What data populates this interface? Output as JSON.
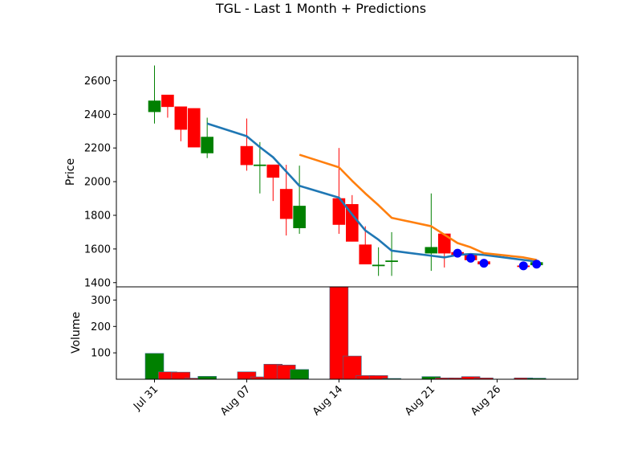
{
  "title": "TGL - Last 1 Month + Predictions",
  "colors": {
    "up": "#008000",
    "down": "#ff0000",
    "ma_short": "#1f77b4",
    "ma_long": "#ff7f0e",
    "prediction": "#0000ff"
  },
  "chart_data": [
    {
      "type": "candlestick",
      "ylabel": "Price",
      "ylim": [
        1375,
        2745
      ],
      "yticks": [
        1400,
        1600,
        1800,
        2000,
        2200,
        2400,
        2600
      ],
      "grid": false,
      "candles": [
        {
          "date": "2023-07-31",
          "open": 2415,
          "high": 2690,
          "low": 2345,
          "close": 2480
        },
        {
          "date": "2023-08-01",
          "open": 2515,
          "high": 2515,
          "low": 2380,
          "close": 2445
        },
        {
          "date": "2023-08-02",
          "open": 2445,
          "high": 2445,
          "low": 2240,
          "close": 2310
        },
        {
          "date": "2023-08-03",
          "open": 2435,
          "high": 2435,
          "low": 2205,
          "close": 2205
        },
        {
          "date": "2023-08-04",
          "open": 2170,
          "high": 2380,
          "low": 2140,
          "close": 2265
        },
        {
          "date": "2023-08-07",
          "open": 2210,
          "high": 2375,
          "low": 2065,
          "close": 2100
        },
        {
          "date": "2023-08-08",
          "open": 2100,
          "high": 2235,
          "low": 1930,
          "close": 2100
        },
        {
          "date": "2023-08-09",
          "open": 2100,
          "high": 2100,
          "low": 1885,
          "close": 2025
        },
        {
          "date": "2023-08-10",
          "open": 1955,
          "high": 2100,
          "low": 1680,
          "close": 1780
        },
        {
          "date": "2023-08-11",
          "open": 1725,
          "high": 2095,
          "low": 1690,
          "close": 1855
        },
        {
          "date": "2023-08-14",
          "open": 1900,
          "high": 2200,
          "low": 1690,
          "close": 1745
        },
        {
          "date": "2023-08-15",
          "open": 1865,
          "high": 1920,
          "low": 1645,
          "close": 1645
        },
        {
          "date": "2023-08-16",
          "open": 1625,
          "high": 1735,
          "low": 1510,
          "close": 1510
        },
        {
          "date": "2023-08-17",
          "open": 1505,
          "high": 1610,
          "low": 1440,
          "close": 1505
        },
        {
          "date": "2023-08-18",
          "open": 1525,
          "high": 1700,
          "low": 1440,
          "close": 1530
        },
        {
          "date": "2023-08-21",
          "open": 1575,
          "high": 1930,
          "low": 1470,
          "close": 1610
        },
        {
          "date": "2023-08-22",
          "open": 1690,
          "high": 1690,
          "low": 1490,
          "close": 1575
        },
        {
          "date": "2023-08-23",
          "open": 1580,
          "high": 1595,
          "low": 1555,
          "close": 1565
        },
        {
          "date": "2023-08-24",
          "open": 1565,
          "high": 1575,
          "low": 1535,
          "close": 1535
        },
        {
          "date": "2023-08-25",
          "open": 1525,
          "high": 1530,
          "low": 1505,
          "close": 1510
        },
        {
          "date": "2023-08-28",
          "open": 1500,
          "high": 1510,
          "low": 1490,
          "close": 1495
        },
        {
          "date": "2023-08-29",
          "open": 1505,
          "high": 1530,
          "low": 1500,
          "close": 1520
        }
      ],
      "series": [
        {
          "type": "line",
          "color": "#1f77b4",
          "points": [
            {
              "x": "2023-08-04",
              "y": 2345
            },
            {
              "x": "2023-08-07",
              "y": 2270
            },
            {
              "x": "2023-08-08",
              "y": 2205
            },
            {
              "x": "2023-08-09",
              "y": 2145
            },
            {
              "x": "2023-08-10",
              "y": 2060
            },
            {
              "x": "2023-08-11",
              "y": 1975
            },
            {
              "x": "2023-08-14",
              "y": 1905
            },
            {
              "x": "2023-08-15",
              "y": 1805
            },
            {
              "x": "2023-08-16",
              "y": 1710
            },
            {
              "x": "2023-08-17",
              "y": 1655
            },
            {
              "x": "2023-08-18",
              "y": 1590
            },
            {
              "x": "2023-08-21",
              "y": 1560
            },
            {
              "x": "2023-08-22",
              "y": 1550
            },
            {
              "x": "2023-08-23",
              "y": 1565
            },
            {
              "x": "2023-08-24",
              "y": 1570
            },
            {
              "x": "2023-08-25",
              "y": 1565
            },
            {
              "x": "2023-08-28",
              "y": 1535
            },
            {
              "x": "2023-08-29",
              "y": 1525
            }
          ]
        },
        {
          "type": "line",
          "color": "#ff7f0e",
          "points": [
            {
              "x": "2023-08-11",
              "y": 2160
            },
            {
              "x": "2023-08-14",
              "y": 2085
            },
            {
              "x": "2023-08-15",
              "y": 2005
            },
            {
              "x": "2023-08-16",
              "y": 1930
            },
            {
              "x": "2023-08-17",
              "y": 1860
            },
            {
              "x": "2023-08-18",
              "y": 1785
            },
            {
              "x": "2023-08-21",
              "y": 1735
            },
            {
              "x": "2023-08-22",
              "y": 1685
            },
            {
              "x": "2023-08-23",
              "y": 1635
            },
            {
              "x": "2023-08-24",
              "y": 1610
            },
            {
              "x": "2023-08-25",
              "y": 1575
            },
            {
              "x": "2023-08-28",
              "y": 1550
            },
            {
              "x": "2023-08-29",
              "y": 1535
            }
          ]
        },
        {
          "type": "scatter",
          "color": "#0000ff",
          "points": [
            {
              "x": "2023-08-23",
              "y": 1575
            },
            {
              "x": "2023-08-24",
              "y": 1545
            },
            {
              "x": "2023-08-25",
              "y": 1515
            },
            {
              "x": "2023-08-28",
              "y": 1500
            },
            {
              "x": "2023-08-29",
              "y": 1510
            }
          ]
        }
      ]
    },
    {
      "type": "bar",
      "ylabel": "Volume",
      "ylim": [
        0,
        350
      ],
      "yticks": [
        100,
        200,
        300
      ],
      "xticks": [
        "Jul 31",
        "Aug 07",
        "Aug 14",
        "Aug 21",
        "Aug 26"
      ],
      "categories": [
        "2023-07-31",
        "2023-08-01",
        "2023-08-02",
        "2023-08-03",
        "2023-08-04",
        "2023-08-07",
        "2023-08-08",
        "2023-08-09",
        "2023-08-10",
        "2023-08-11",
        "2023-08-14",
        "2023-08-15",
        "2023-08-16",
        "2023-08-17",
        "2023-08-18",
        "2023-08-21",
        "2023-08-22",
        "2023-08-23",
        "2023-08-24",
        "2023-08-25",
        "2023-08-28",
        "2023-08-29"
      ],
      "values": [
        98,
        28,
        27,
        4,
        11,
        28,
        9,
        57,
        54,
        37,
        350,
        88,
        14,
        14,
        3,
        10,
        5,
        5,
        10,
        5,
        5,
        4
      ],
      "bar_colors": [
        "up",
        "down",
        "down",
        "down",
        "up",
        "down",
        "down",
        "down",
        "down",
        "up",
        "down",
        "down",
        "down",
        "down",
        "up",
        "up",
        "down",
        "down",
        "down",
        "down",
        "down",
        "up"
      ]
    }
  ]
}
